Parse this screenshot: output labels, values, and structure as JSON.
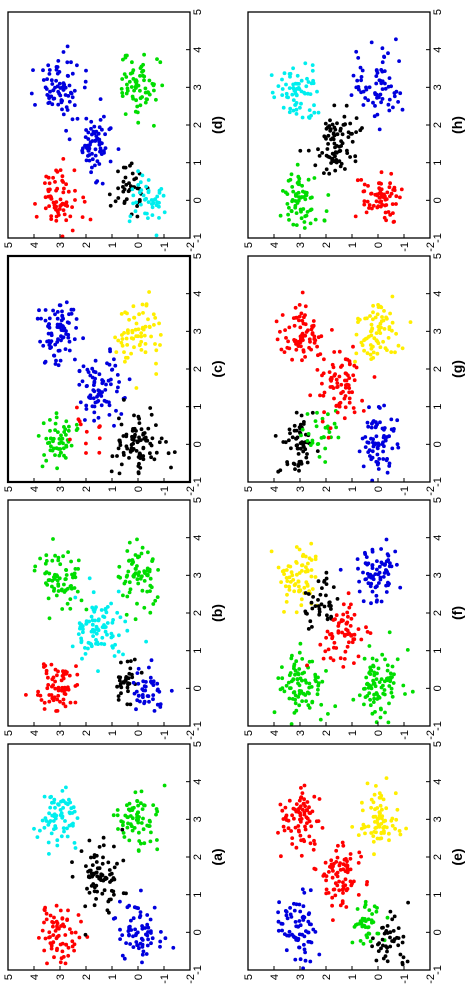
{
  "figure": {
    "rotation": "90° counter-clockwise",
    "layout": "2 columns × 4 rows",
    "colors": {
      "red": "#ff0000",
      "blue": "#0000dd",
      "green": "#00dd00",
      "cyan": "#00eeee",
      "black": "#000000",
      "yellow": "#ffee00"
    }
  },
  "chart_data": [
    {
      "type": "scatter",
      "label": "(a)",
      "xlim": [
        -1,
        5
      ],
      "ylim": [
        -2,
        5
      ],
      "xticks": [
        "-1",
        "0",
        "1",
        "2",
        "3",
        "4",
        "5"
      ],
      "yticks": [
        "-2",
        "-1",
        "0",
        "1",
        "2",
        "3",
        "4",
        "5"
      ],
      "clusters": [
        {
          "color": "red",
          "center": [
            0,
            3
          ],
          "spread": 0.4,
          "count": 70
        },
        {
          "color": "cyan",
          "center": [
            3,
            3
          ],
          "spread": 0.4,
          "count": 70
        },
        {
          "color": "black",
          "center": [
            1.5,
            1.5
          ],
          "spread": 0.45,
          "count": 80
        },
        {
          "color": "blue",
          "center": [
            0,
            0
          ],
          "spread": 0.4,
          "count": 70
        },
        {
          "color": "green",
          "center": [
            3,
            0
          ],
          "spread": 0.4,
          "count": 70
        }
      ]
    },
    {
      "type": "scatter",
      "label": "(b)",
      "xlim": [
        -1,
        5
      ],
      "ylim": [
        -2,
        5
      ],
      "xticks": [
        "-1",
        "0",
        "1",
        "2",
        "3",
        "4",
        "5"
      ],
      "yticks": [
        "-2",
        "-1",
        "0",
        "1",
        "2",
        "3",
        "4",
        "5"
      ],
      "clusters": [
        {
          "color": "red",
          "center": [
            0,
            3
          ],
          "spread": 0.4,
          "count": 70
        },
        {
          "color": "green",
          "center": [
            3,
            3
          ],
          "spread": 0.4,
          "count": 70
        },
        {
          "color": "cyan",
          "center": [
            1.5,
            1.5
          ],
          "spread": 0.45,
          "count": 90
        },
        {
          "color": "black",
          "center": [
            0.2,
            0.4
          ],
          "spread": 0.3,
          "count": 35
        },
        {
          "color": "blue",
          "center": [
            0,
            -0.3
          ],
          "spread": 0.35,
          "count": 45
        },
        {
          "color": "green",
          "center": [
            3,
            0
          ],
          "spread": 0.4,
          "count": 70
        }
      ]
    },
    {
      "type": "scatter",
      "label": "(c)",
      "xlim": [
        -1,
        5
      ],
      "ylim": [
        -2,
        5
      ],
      "xticks": [
        "-1",
        "0",
        "1",
        "2",
        "3",
        "4",
        "5"
      ],
      "yticks": [
        "-2",
        "-1",
        "0",
        "1",
        "2",
        "3",
        "4",
        "5"
      ],
      "clusters": [
        {
          "color": "green",
          "center": [
            0,
            3
          ],
          "spread": 0.35,
          "count": 55
        },
        {
          "color": "red",
          "center": [
            0.2,
            2.0
          ],
          "spread": 0.35,
          "count": 12
        },
        {
          "color": "blue",
          "center": [
            3,
            3
          ],
          "spread": 0.4,
          "count": 80
        },
        {
          "color": "blue",
          "center": [
            1.5,
            1.5
          ],
          "spread": 0.45,
          "count": 80
        },
        {
          "color": "black",
          "center": [
            0,
            0
          ],
          "spread": 0.45,
          "count": 90
        },
        {
          "color": "yellow",
          "center": [
            3,
            0
          ],
          "spread": 0.4,
          "count": 70
        }
      ]
    },
    {
      "type": "scatter",
      "label": "(d)",
      "xlim": [
        -1,
        5
      ],
      "ylim": [
        -2,
        5
      ],
      "xticks": [
        "-1",
        "0",
        "1",
        "2",
        "3",
        "4",
        "5"
      ],
      "yticks": [
        "-2",
        "-1",
        "0",
        "1",
        "2",
        "3",
        "4",
        "5"
      ],
      "clusters": [
        {
          "color": "red",
          "center": [
            0,
            3
          ],
          "spread": 0.4,
          "count": 70
        },
        {
          "color": "blue",
          "center": [
            3,
            3
          ],
          "spread": 0.4,
          "count": 75
        },
        {
          "color": "blue",
          "center": [
            1.5,
            1.6
          ],
          "spread": 0.4,
          "count": 75
        },
        {
          "color": "black",
          "center": [
            0.3,
            0.3
          ],
          "spread": 0.3,
          "count": 40
        },
        {
          "color": "cyan",
          "center": [
            0,
            -0.3
          ],
          "spread": 0.35,
          "count": 45
        },
        {
          "color": "green",
          "center": [
            3,
            0
          ],
          "spread": 0.4,
          "count": 70
        }
      ]
    },
    {
      "type": "scatter",
      "label": "(e)",
      "xlim": [
        -1,
        5
      ],
      "ylim": [
        -2,
        5
      ],
      "xticks": [
        "-1",
        "0",
        "1",
        "2",
        "3",
        "4",
        "5"
      ],
      "yticks": [
        "-2",
        "-1",
        "0",
        "1",
        "2",
        "3",
        "4",
        "5"
      ],
      "clusters": [
        {
          "color": "blue",
          "center": [
            0,
            3
          ],
          "spread": 0.4,
          "count": 75
        },
        {
          "color": "red",
          "center": [
            3,
            3
          ],
          "spread": 0.4,
          "count": 80
        },
        {
          "color": "red",
          "center": [
            1.5,
            1.5
          ],
          "spread": 0.45,
          "count": 80
        },
        {
          "color": "green",
          "center": [
            0.3,
            0.4
          ],
          "spread": 0.3,
          "count": 40
        },
        {
          "color": "black",
          "center": [
            -0.2,
            -0.4
          ],
          "spread": 0.35,
          "count": 45
        },
        {
          "color": "yellow",
          "center": [
            3,
            0
          ],
          "spread": 0.4,
          "count": 75
        }
      ]
    },
    {
      "type": "scatter",
      "label": "(f)",
      "xlim": [
        -1,
        5
      ],
      "ylim": [
        -2,
        5
      ],
      "xticks": [
        "-1",
        "0",
        "1",
        "2",
        "3",
        "4",
        "5"
      ],
      "yticks": [
        "-2",
        "-1",
        "0",
        "1",
        "2",
        "3",
        "4",
        "5"
      ],
      "clusters": [
        {
          "color": "green",
          "center": [
            0,
            3
          ],
          "spread": 0.45,
          "count": 90
        },
        {
          "color": "yellow",
          "center": [
            3,
            3
          ],
          "spread": 0.4,
          "count": 70
        },
        {
          "color": "black",
          "center": [
            2.2,
            2.2
          ],
          "spread": 0.35,
          "count": 40
        },
        {
          "color": "red",
          "center": [
            1.4,
            1.3
          ],
          "spread": 0.4,
          "count": 65
        },
        {
          "color": "green",
          "center": [
            0,
            0
          ],
          "spread": 0.45,
          "count": 90
        },
        {
          "color": "blue",
          "center": [
            3,
            0
          ],
          "spread": 0.4,
          "count": 75
        }
      ]
    },
    {
      "type": "scatter",
      "label": "(g)",
      "xlim": [
        -1,
        5
      ],
      "ylim": [
        -2,
        5
      ],
      "xticks": [
        "-1",
        "0",
        "1",
        "2",
        "3",
        "4",
        "5"
      ],
      "yticks": [
        "-2",
        "-1",
        "0",
        "1",
        "2",
        "3",
        "4",
        "5"
      ],
      "clusters": [
        {
          "color": "black",
          "center": [
            0,
            3.1
          ],
          "spread": 0.35,
          "count": 60
        },
        {
          "color": "green",
          "center": [
            0.3,
            2.2
          ],
          "spread": 0.35,
          "count": 30
        },
        {
          "color": "red",
          "center": [
            3,
            3
          ],
          "spread": 0.4,
          "count": 75
        },
        {
          "color": "red",
          "center": [
            1.5,
            1.5
          ],
          "spread": 0.45,
          "count": 80
        },
        {
          "color": "blue",
          "center": [
            0,
            0
          ],
          "spread": 0.4,
          "count": 75
        },
        {
          "color": "yellow",
          "center": [
            3,
            0
          ],
          "spread": 0.4,
          "count": 75
        }
      ]
    },
    {
      "type": "scatter",
      "label": "(h)",
      "xlim": [
        -1,
        5
      ],
      "ylim": [
        -2,
        5
      ],
      "xticks": [
        "-1",
        "0",
        "1",
        "2",
        "3",
        "4",
        "5"
      ],
      "yticks": [
        "-2",
        "-1",
        "0",
        "1",
        "2",
        "3",
        "4",
        "5"
      ],
      "clusters": [
        {
          "color": "green",
          "center": [
            0,
            3
          ],
          "spread": 0.4,
          "count": 70
        },
        {
          "color": "cyan",
          "center": [
            3,
            3
          ],
          "spread": 0.4,
          "count": 70
        },
        {
          "color": "black",
          "center": [
            1.5,
            1.5
          ],
          "spread": 0.45,
          "count": 85
        },
        {
          "color": "red",
          "center": [
            0,
            0
          ],
          "spread": 0.4,
          "count": 70
        },
        {
          "color": "blue",
          "center": [
            3,
            0
          ],
          "spread": 0.4,
          "count": 70
        }
      ]
    }
  ]
}
